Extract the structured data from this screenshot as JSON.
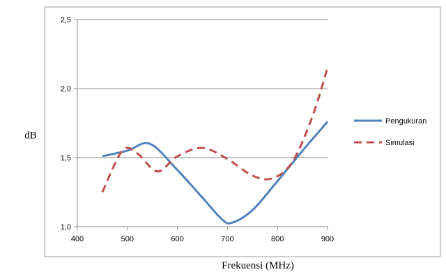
{
  "chart_data": {
    "type": "line",
    "title": "",
    "xlabel": "Frekuensi (MHz)",
    "ylabel": "dB",
    "xlim": [
      400,
      900
    ],
    "ylim": [
      1.0,
      2.5
    ],
    "x_ticks": [
      400,
      500,
      600,
      700,
      800,
      900
    ],
    "x_tick_labels": [
      "400",
      "500",
      "600",
      "700",
      "800",
      "900"
    ],
    "y_ticks": [
      1.0,
      1.5,
      2.0,
      2.5
    ],
    "y_tick_labels": [
      "1,0",
      "1,5",
      "2,0",
      "2,5"
    ],
    "grid": "horizontal",
    "legend_position": "right",
    "series": [
      {
        "name": "Pengukuran",
        "color": "#4f81bd",
        "style": "solid",
        "x": [
          450,
          500,
          545,
          600,
          650,
          690,
          710,
          750,
          800,
          850,
          900
        ],
        "y": [
          1.51,
          1.55,
          1.6,
          1.41,
          1.21,
          1.05,
          1.03,
          1.12,
          1.33,
          1.55,
          1.76
        ]
      },
      {
        "name": "Simulasi",
        "color": "#c0504d",
        "style": "dashed",
        "x": [
          450,
          490,
          520,
          560,
          600,
          650,
          700,
          750,
          790,
          830,
          870,
          900
        ],
        "y": [
          1.25,
          1.55,
          1.53,
          1.4,
          1.51,
          1.57,
          1.49,
          1.37,
          1.35,
          1.47,
          1.8,
          2.15
        ]
      }
    ]
  }
}
